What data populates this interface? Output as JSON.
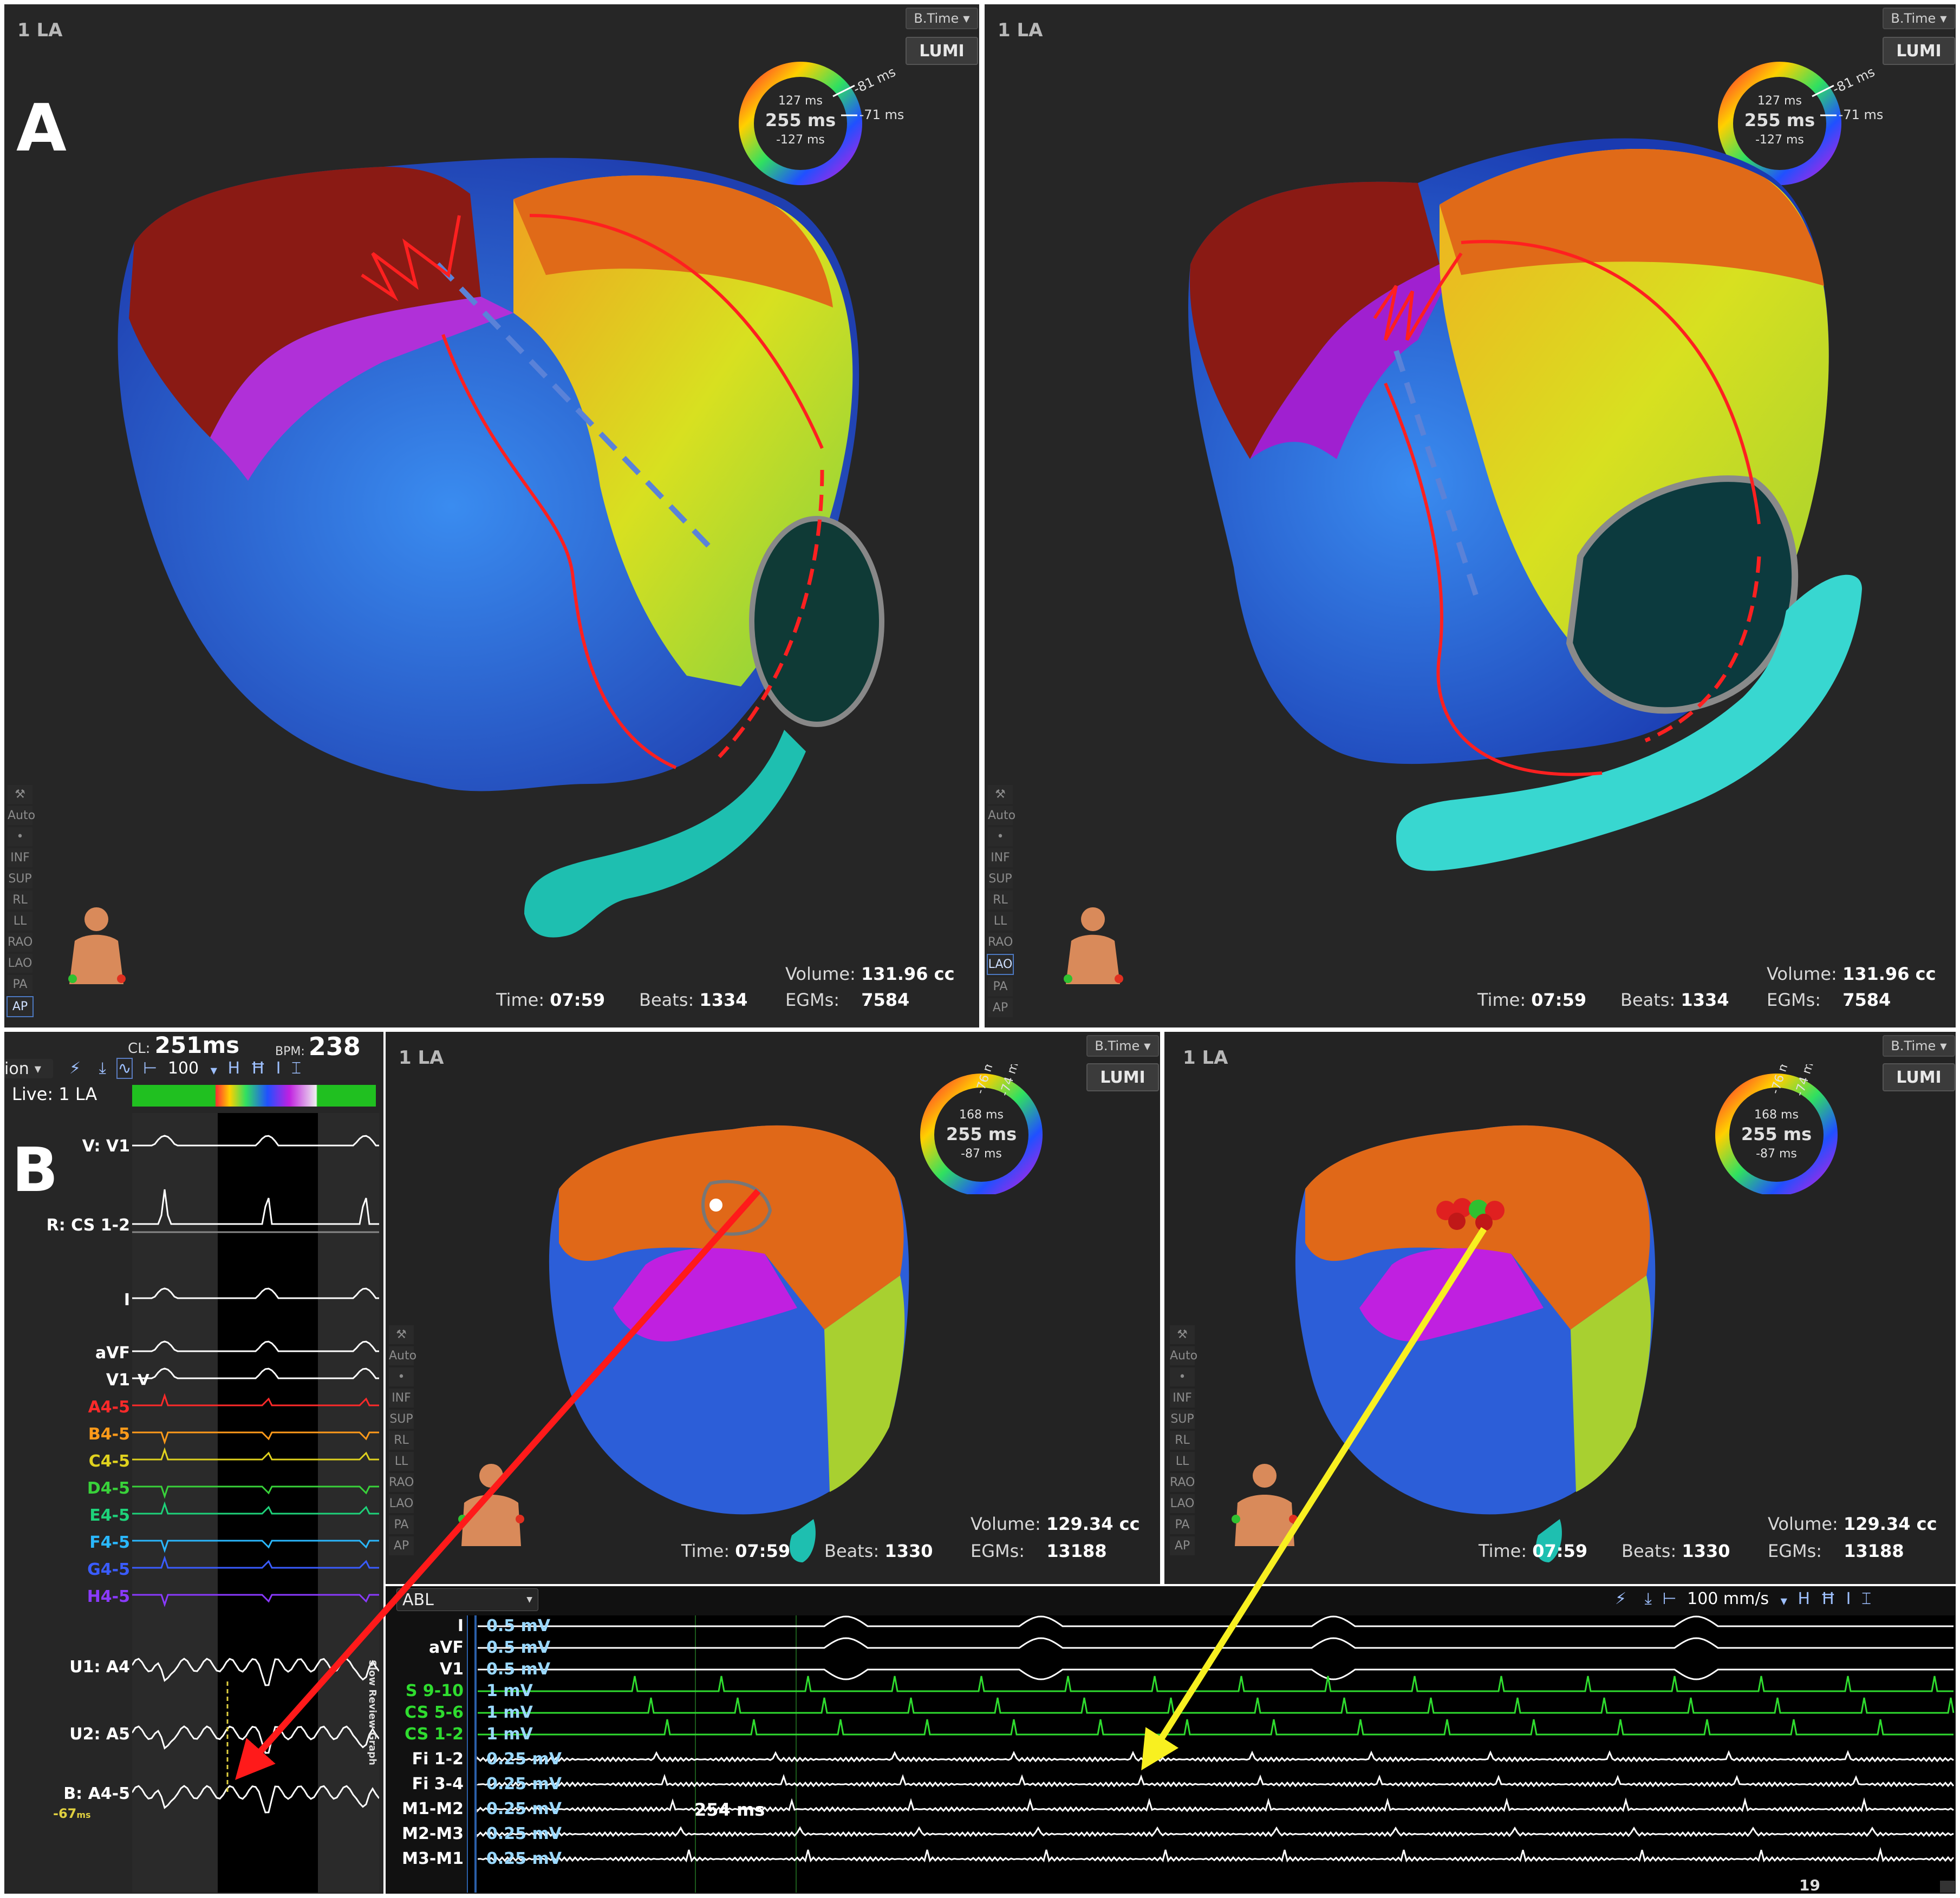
{
  "panel_a": {
    "letter": "A",
    "left_view": {
      "title": "1 LA",
      "map_mode": "B.Time",
      "lumi_label": "LUMI",
      "ring": {
        "top": "127 ms",
        "center": "255 ms",
        "bottom": "-127 ms",
        "tag1": "-81 ms",
        "tag2": "-71 ms"
      },
      "time_label": "Time:",
      "time_value": "07:59",
      "beats_label": "Beats:",
      "beats_value": "1334",
      "volume_label": "Volume:",
      "volume_value": "131.96 cc",
      "egms_label": "EGMs:",
      "egms_value": "7584"
    },
    "right_view": {
      "title": "1 LA",
      "map_mode": "B.Time",
      "lumi_label": "LUMI",
      "ring": {
        "top": "127 ms",
        "center": "255 ms",
        "bottom": "-127 ms",
        "tag1": "-81 ms",
        "tag2": "-71 ms"
      },
      "time_label": "Time:",
      "time_value": "07:59",
      "beats_label": "Beats:",
      "beats_value": "1334",
      "volume_label": "Volume:",
      "volume_value": "131.96 cc",
      "egms_label": "EGMs:",
      "egms_value": "7584"
    },
    "view_toolbar": [
      "Auto",
      "•",
      "INF",
      "SUP",
      "RL",
      "LL",
      "RAO",
      "LAO",
      "PA",
      "AP"
    ],
    "left_selected": "AP",
    "right_selected": "LAO"
  },
  "panel_b": {
    "letter": "B",
    "header": {
      "cl_label": "CL:",
      "cl_value": "251ms",
      "bpm_label": "BPM:",
      "bpm_value": "238"
    },
    "mode_label": "ion",
    "speed_value": "100",
    "live_label": "Live: 1 LA",
    "signals": [
      {
        "label": "V: V1",
        "color": "#ffffff"
      },
      {
        "label": "R: CS 1-2",
        "color": "#ffffff"
      },
      {
        "label": "I",
        "color": "#ffffff"
      },
      {
        "label": "aVF",
        "color": "#ffffff"
      },
      {
        "label": "V1",
        "color": "#ffffff"
      },
      {
        "label": "A4-5",
        "color": "#ff2a2a"
      },
      {
        "label": "B4-5",
        "color": "#ff9a1a"
      },
      {
        "label": "C4-5",
        "color": "#e0d21e"
      },
      {
        "label": "D4-5",
        "color": "#39d23a"
      },
      {
        "label": "E4-5",
        "color": "#1ed27a"
      },
      {
        "label": "F4-5",
        "color": "#2ab8ff"
      },
      {
        "label": "G4-5",
        "color": "#3a5cff"
      },
      {
        "label": "H4-5",
        "color": "#8a3aff"
      },
      {
        "label": "U1: A4",
        "color": "#ffffff"
      },
      {
        "label": "U2: A5",
        "color": "#ffffff"
      },
      {
        "label": "B: A4-5",
        "color": "#ffffff"
      }
    ],
    "v1_marker": "V",
    "annotation_value": "-67",
    "annotation_unit": "ms",
    "vertical_tab": "Slow Review Graph",
    "left_view": {
      "title": "1 LA",
      "map_mode": "B.Time",
      "lumi_label": "LUMI",
      "ring": {
        "top": "168 ms",
        "center": "255 ms",
        "bottom": "-87 ms",
        "tag1": "-76 ms",
        "tag2": "-74 ms"
      },
      "time_label": "Time:",
      "time_value": "07:59",
      "beats_label": "Beats:",
      "beats_value": "1330",
      "volume_label": "Volume:",
      "volume_value": "129.34 cc",
      "egms_label": "EGMs:",
      "egms_value": "13188"
    },
    "right_view": {
      "title": "1 LA",
      "map_mode": "B.Time",
      "lumi_label": "LUMI",
      "ring": {
        "top": "168 ms",
        "center": "255 ms",
        "bottom": "-87 ms",
        "tag1": "-76 ms",
        "tag2": "-74 ms"
      },
      "time_label": "Time:",
      "time_value": "07:59",
      "beats_label": "Beats:",
      "beats_value": "1330",
      "volume_label": "Volume:",
      "volume_value": "129.34 cc",
      "egms_label": "EGMs:",
      "egms_value": "13188"
    },
    "abl": {
      "channel_select": "ABL",
      "speed_label": "100 mm/s",
      "channels": [
        {
          "label": "I",
          "gain": "0.5 mV",
          "color": "#ffffff"
        },
        {
          "label": "aVF",
          "gain": "0.5 mV",
          "color": "#ffffff"
        },
        {
          "label": "V1",
          "gain": "0.5 mV",
          "color": "#ffffff"
        },
        {
          "label": "S 9-10",
          "gain": "1 mV",
          "color": "#2fdc2f"
        },
        {
          "label": "CS 5-6",
          "gain": "1 mV",
          "color": "#2fdc2f"
        },
        {
          "label": "CS 1-2",
          "gain": "1 mV",
          "color": "#2fdc2f"
        },
        {
          "label": "Fi 1-2",
          "gain": "0.25 mV",
          "color": "#ffffff"
        },
        {
          "label": "Fi 3-4",
          "gain": "0.25 mV",
          "color": "#ffffff"
        },
        {
          "label": "M1-M2",
          "gain": "0.25 mV",
          "color": "#ffffff"
        },
        {
          "label": "M2-M3",
          "gain": "0.25 mV",
          "color": "#ffffff"
        },
        {
          "label": "M3-M1",
          "gain": "0.25 mV",
          "color": "#ffffff"
        }
      ],
      "interval_label": "254 ms",
      "page_number": "19"
    }
  }
}
